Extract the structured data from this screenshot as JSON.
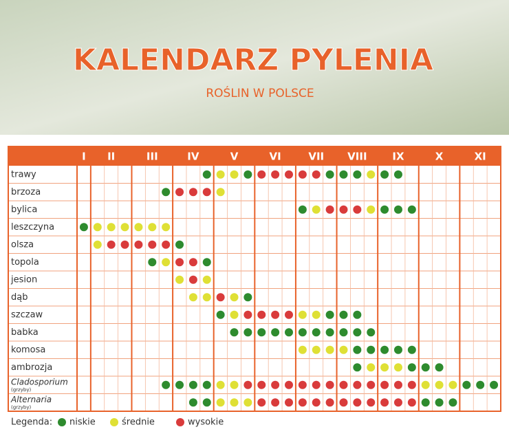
{
  "header": {
    "title": "KALENDARZ PYLENIA",
    "subtitle": "ROŚLIN W POLSCE"
  },
  "months": [
    {
      "label": "I",
      "cols": 1
    },
    {
      "label": "II",
      "cols": 3
    },
    {
      "label": "III",
      "cols": 3
    },
    {
      "label": "IV",
      "cols": 3
    },
    {
      "label": "V",
      "cols": 3
    },
    {
      "label": "VI",
      "cols": 3
    },
    {
      "label": "VII",
      "cols": 3
    },
    {
      "label": "VIII",
      "cols": 3
    },
    {
      "label": "IX",
      "cols": 3
    },
    {
      "label": "X",
      "cols": 3
    },
    {
      "label": "XI",
      "cols": 3
    }
  ],
  "rows": [
    {
      "label": "trawy",
      "start": 9,
      "cells": [
        "n",
        "s",
        "s",
        "n",
        "w",
        "w",
        "w",
        "w",
        "w",
        "n",
        "n",
        "n",
        "s",
        "n",
        "n"
      ]
    },
    {
      "label": "brzoza",
      "start": 6,
      "cells": [
        "n",
        "w",
        "w",
        "w",
        "s"
      ]
    },
    {
      "label": "bylica",
      "start": 16,
      "cells": [
        "n",
        "s",
        "w",
        "w",
        "w",
        "s",
        "n",
        "n",
        "n"
      ]
    },
    {
      "label": "leszczyna",
      "start": 0,
      "cells": [
        "n",
        "s",
        "s",
        "s",
        "s",
        "s",
        "s"
      ]
    },
    {
      "label": "olsza",
      "start": 1,
      "cells": [
        "s",
        "w",
        "w",
        "w",
        "w",
        "w",
        "n"
      ]
    },
    {
      "label": "topola",
      "start": 5,
      "cells": [
        "n",
        "s",
        "w",
        "w",
        "n"
      ]
    },
    {
      "label": "jesion",
      "start": 7,
      "cells": [
        "s",
        "w",
        "s"
      ]
    },
    {
      "label": "dąb",
      "start": 8,
      "cells": [
        "s",
        "s",
        "w",
        "s",
        "n"
      ]
    },
    {
      "label": "szczaw",
      "start": 10,
      "cells": [
        "n",
        "s",
        "w",
        "w",
        "w",
        "w",
        "s",
        "s",
        "n",
        "n",
        "n"
      ]
    },
    {
      "label": "babka",
      "start": 11,
      "cells": [
        "n",
        "n",
        "n",
        "n",
        "n",
        "n",
        "n",
        "n",
        "n",
        "n",
        "n"
      ]
    },
    {
      "label": "komosa",
      "start": 16,
      "cells": [
        "s",
        "s",
        "s",
        "s",
        "n",
        "n",
        "n",
        "n",
        "n"
      ]
    },
    {
      "label": "ambrozja",
      "start": 20,
      "cells": [
        "n",
        "s",
        "s",
        "s",
        "n",
        "n",
        "n"
      ]
    },
    {
      "label": "Cladosporium",
      "note": "(grzyby)",
      "start": 6,
      "cells": [
        "n",
        "n",
        "n",
        "n",
        "s",
        "s",
        "w",
        "w",
        "w",
        "w",
        "w",
        "w",
        "w",
        "w",
        "w",
        "w",
        "w",
        "w",
        "w",
        "s",
        "s",
        "s",
        "n",
        "n",
        "n"
      ]
    },
    {
      "label": "Alternaria",
      "note": "(grzyby)",
      "start": 8,
      "cells": [
        "n",
        "n",
        "s",
        "s",
        "s",
        "w",
        "w",
        "w",
        "w",
        "w",
        "w",
        "w",
        "w",
        "w",
        "w",
        "w",
        "w",
        "n",
        "n",
        "n"
      ]
    }
  ],
  "legend": {
    "title": "Legenda:",
    "items": [
      {
        "code": "n",
        "label": "niskie",
        "color": "#2e8b2e"
      },
      {
        "code": "s",
        "label": "średnie",
        "color": "#dfe035"
      },
      {
        "code": "w",
        "label": "wysokie",
        "color": "#d93b3b"
      }
    ]
  }
}
